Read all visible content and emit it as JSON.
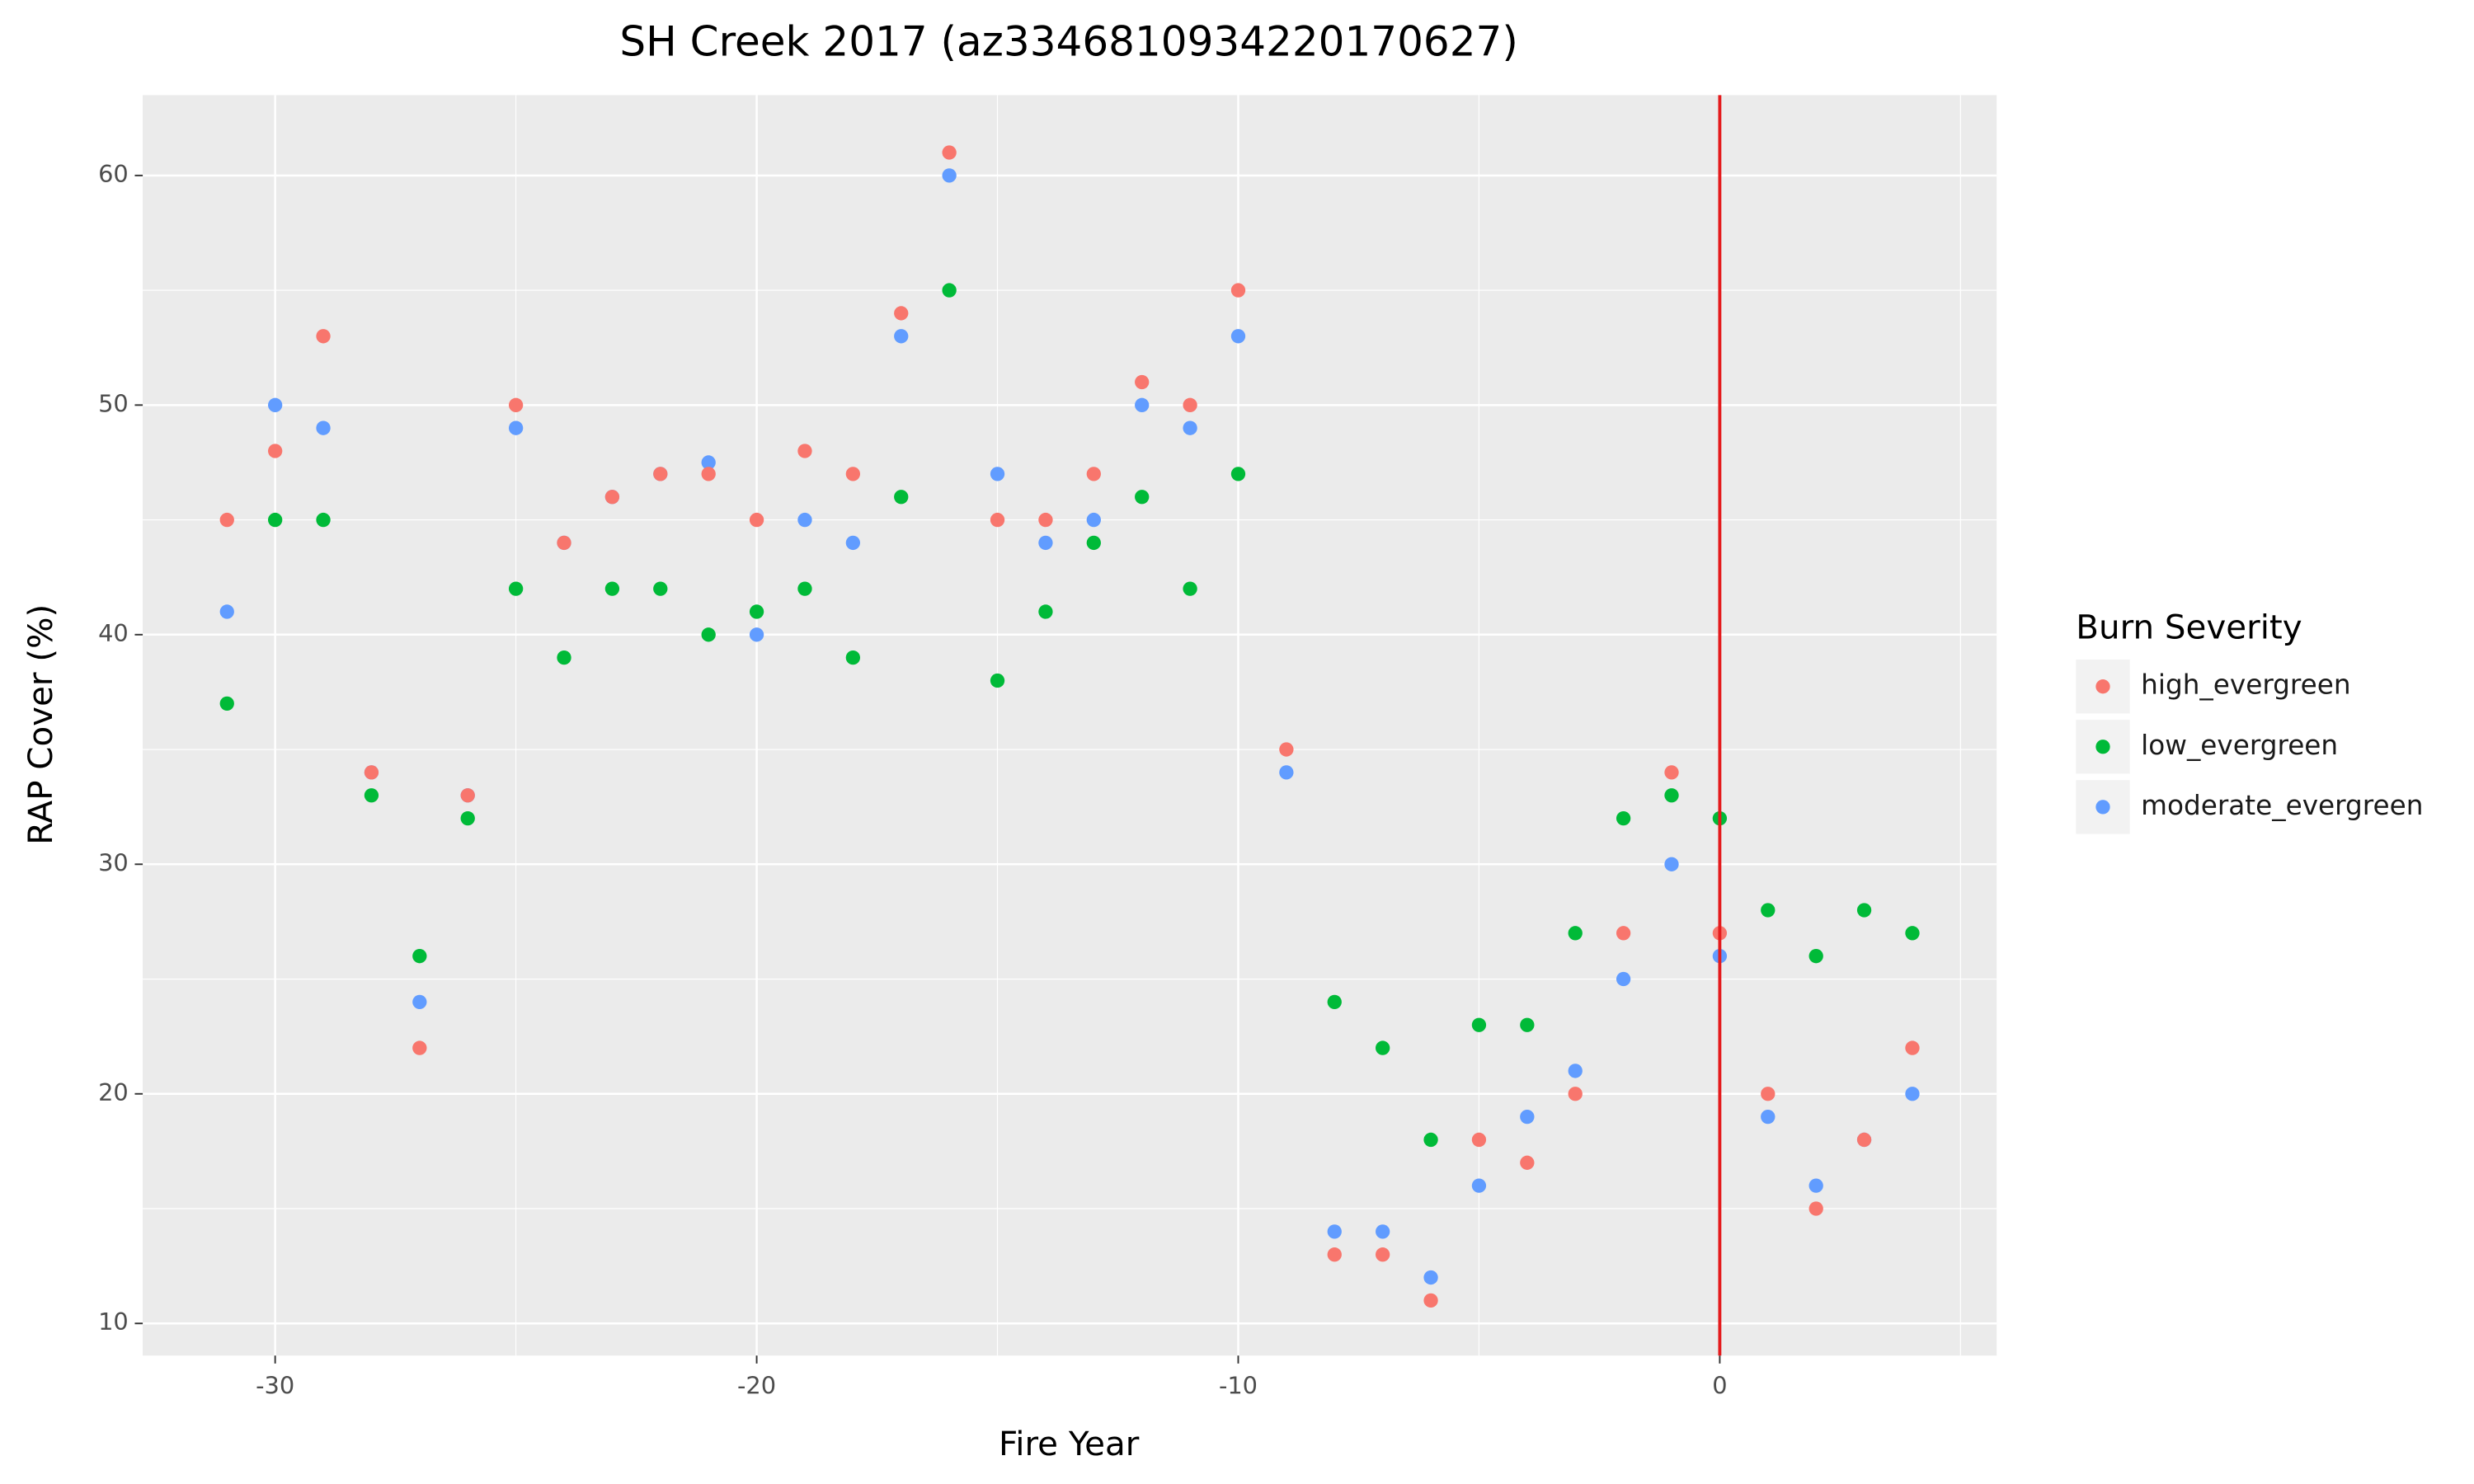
{
  "chart_data": {
    "type": "scatter",
    "title": "SH Creek 2017 (az3346810934220170627)",
    "x_label": "Fire Year",
    "y_label": "RAP Cover (%)",
    "legend_title": "Burn Severity",
    "legend_position": "right",
    "x": [
      -31,
      -30,
      -29,
      -28,
      -27,
      -26,
      -25,
      -24,
      -23,
      -22,
      -21,
      -20,
      -19,
      -18,
      -17,
      -16,
      -15,
      -14,
      -13,
      -12,
      -11,
      -10,
      -9,
      -8,
      -7,
      -6,
      -5,
      -4,
      -3,
      -2,
      -1,
      0,
      1,
      2,
      3,
      4
    ],
    "series": [
      {
        "name": "moderate_evergreen",
        "color": "#619cff",
        "values": [
          41,
          50,
          49,
          34,
          24,
          33,
          49,
          44,
          46,
          47,
          47.5,
          40,
          45,
          44,
          53,
          60,
          47,
          44,
          45,
          50,
          49,
          53,
          34,
          14,
          14,
          12,
          16,
          19,
          21,
          25,
          30,
          26,
          19,
          16,
          18,
          20
        ]
      },
      {
        "name": "low_evergreen",
        "color": "#00ba38",
        "values": [
          37,
          45,
          45,
          33,
          26,
          32,
          42,
          39,
          42,
          42,
          40,
          41,
          42,
          39,
          46,
          55,
          38,
          41,
          44,
          46,
          42,
          47,
          null,
          24,
          22,
          18,
          23,
          23,
          27,
          32,
          33,
          32,
          28,
          26,
          28,
          27
        ]
      },
      {
        "name": "high_evergreen",
        "color": "#f8766d",
        "values": [
          45,
          48,
          53,
          34,
          22,
          33,
          50,
          44,
          46,
          47,
          47,
          45,
          48,
          47,
          54,
          61,
          45,
          45,
          47,
          51,
          50,
          55,
          35,
          13,
          13,
          11,
          18,
          17,
          20,
          27,
          34,
          27,
          20,
          15,
          18,
          22
        ]
      }
    ],
    "legend_order": [
      2,
      1,
      0
    ],
    "vline": {
      "x": 0,
      "color": "#e41a1c"
    },
    "xlim": [
      -32.75,
      5.75
    ],
    "xticks": [
      -30,
      -20,
      -10,
      0
    ],
    "ylim": [
      8.6,
      63.5
    ],
    "yticks": [
      10,
      20,
      30,
      40,
      50,
      60
    ],
    "grid": true,
    "panel_color": "#ebebeb"
  }
}
